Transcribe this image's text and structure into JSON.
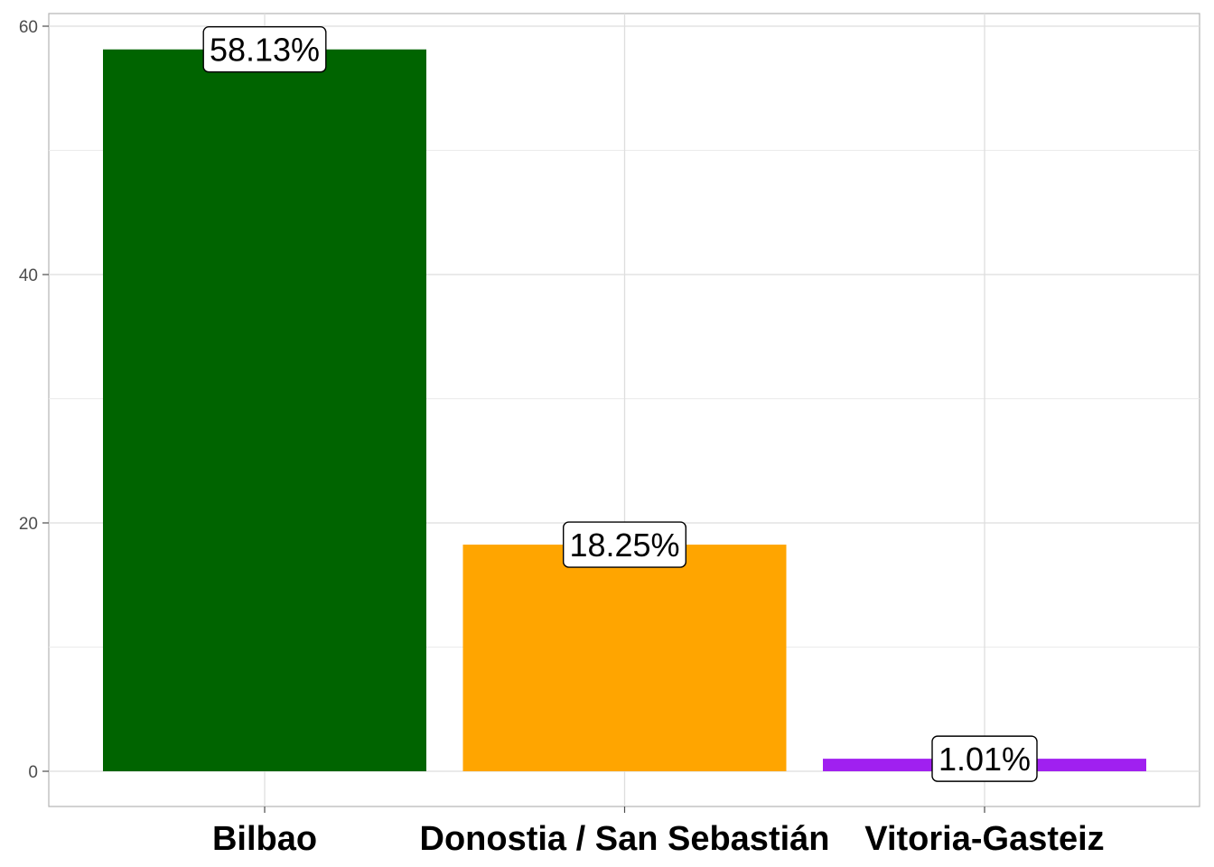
{
  "chart_data": {
    "type": "bar",
    "title": "",
    "xlabel": "",
    "ylabel": "",
    "categories": [
      "Bilbao",
      "Donostia / San Sebastián",
      "Vitoria-Gasteiz"
    ],
    "values": [
      58.13,
      18.25,
      1.01
    ],
    "data_labels": [
      "58.13%",
      "18.25%",
      "1.01%"
    ],
    "colors": [
      "#006400",
      "#FFA500",
      "#A020F0"
    ],
    "ylim": [
      0,
      60
    ],
    "y_ticks": [
      0,
      20,
      40,
      60
    ],
    "grid": true,
    "legend": "none"
  }
}
